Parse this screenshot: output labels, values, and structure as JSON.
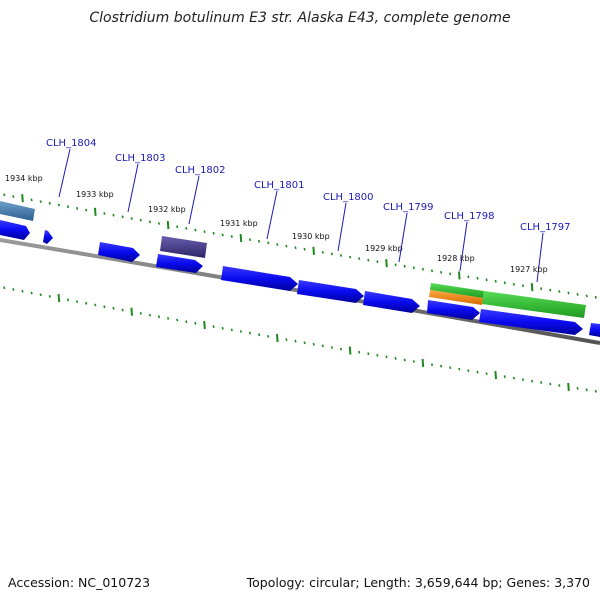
{
  "title": "Clostridium botulinum E3 str. Alaska E43, complete genome",
  "footer": {
    "accession": "Accession: NC_010723",
    "summary": "Topology: circular; Length: 3,659,644 bp; Genes: 3,370"
  },
  "kbp_labels": [
    "1934 kbp",
    "1933 kbp",
    "1932 kbp",
    "1931 kbp",
    "1930 kbp",
    "1929 kbp",
    "1928 kbp",
    "1927 kbp"
  ],
  "gene_labels": [
    "CLH_1804",
    "CLH_1803",
    "CLH_1802",
    "CLH_1801",
    "CLH_1800",
    "CLH_1799",
    "CLH_1798",
    "CLH_1797"
  ],
  "colors": {
    "cds_blue": "#0a0af0",
    "steelblue": "#4a7fb0",
    "purple": "#4a3f8a",
    "green": "#33bb33",
    "orange": "#f08a20",
    "tick_green": "#1e8a1e",
    "backbone": "#7a7a7a"
  }
}
